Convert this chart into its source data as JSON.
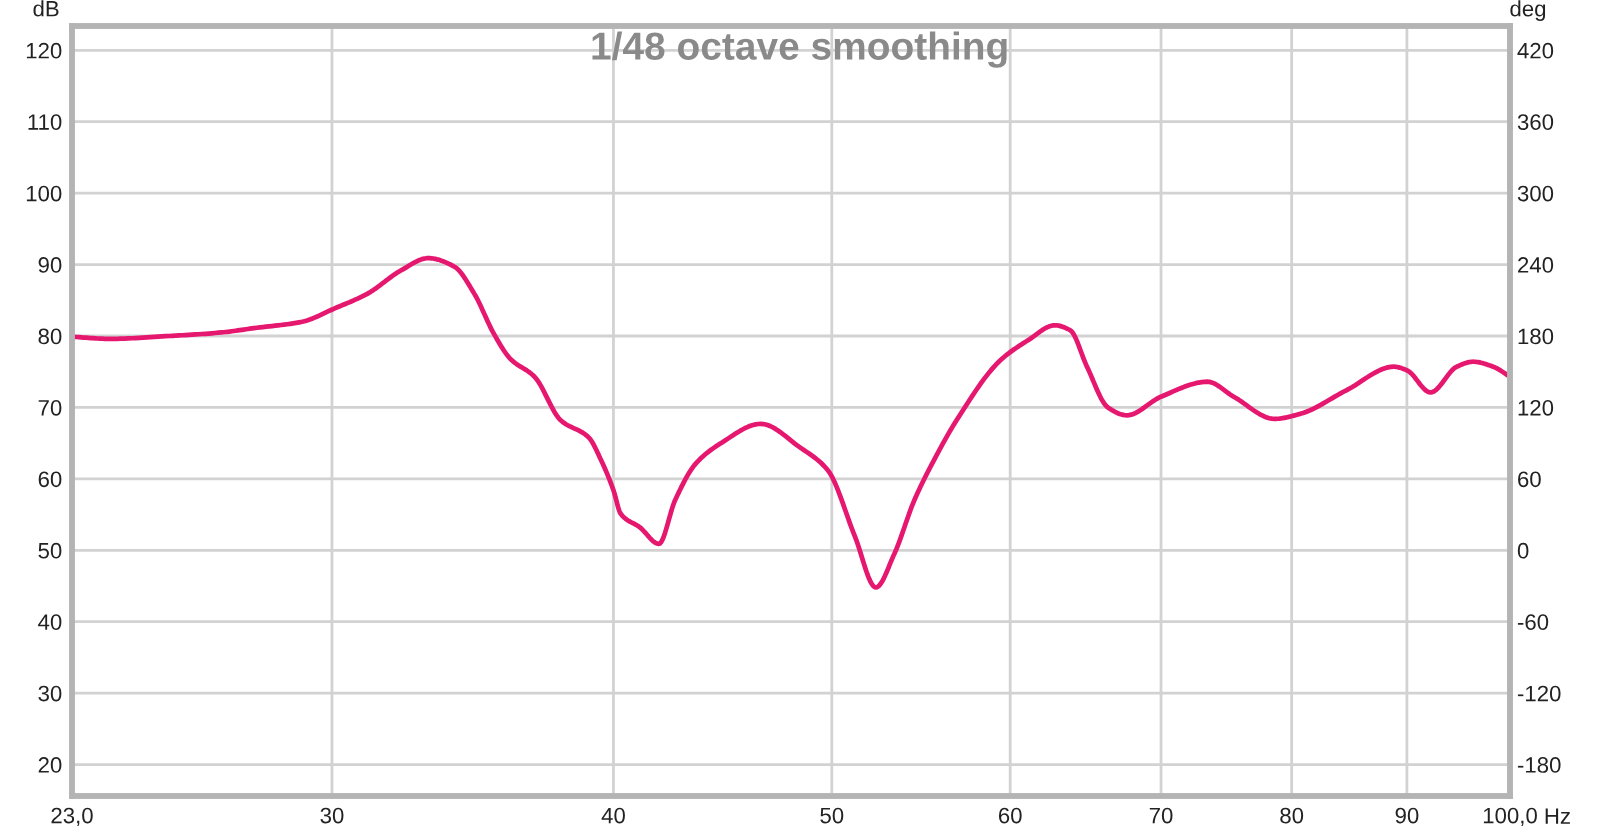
{
  "chart_data": {
    "type": "line",
    "title": "1/48 octave smoothing",
    "xlabel": "Hz",
    "ylabel": "dB",
    "y2label": "deg",
    "x": [
      23.0,
      23.9,
      25.4,
      26.8,
      27.7,
      29.1,
      30.1,
      31.1,
      32.2,
      33.1,
      34.0,
      34.7,
      35.4,
      36.0,
      36.9,
      37.9,
      39.0,
      39.5,
      40.0,
      40.3,
      41.1,
      41.9,
      42.6,
      43.5,
      44.6,
      46.5,
      48.4,
      49.8,
      51.2,
      52.3,
      53.3,
      54.4,
      55.5,
      56.8,
      59.4,
      61.1,
      62.8,
      63.8,
      64.9,
      66.3,
      67.6,
      70.0,
      73.4,
      75.4,
      78.6,
      80.7,
      84.6,
      88.8,
      90.0,
      92.2,
      94.7,
      96.3,
      98.3,
      100
    ],
    "series": [
      {
        "color": "#e5176f",
        "values": [
          79.9,
          79.6,
          80.0,
          80.5,
          81.1,
          82.0,
          83.9,
          85.9,
          89.2,
          90.9,
          89.7,
          85.9,
          80.3,
          76.8,
          74.3,
          68.2,
          65.8,
          62.6,
          58.4,
          55.1,
          53.2,
          50.9,
          57.0,
          62.1,
          64.9,
          67.7,
          64.4,
          61.2,
          51.9,
          44.8,
          49.5,
          57.0,
          62.6,
          68.2,
          76.6,
          79.4,
          81.5,
          80.8,
          75.7,
          70.0,
          68.9,
          71.5,
          73.6,
          71.5,
          68.4,
          69.1,
          72.4,
          75.7,
          75.2,
          72.1,
          75.7,
          76.4,
          75.7,
          74.3
        ]
      }
    ],
    "log": "x",
    "xlim": [
      23,
      100
    ],
    "xticks": [
      {
        "value": 23,
        "label": "23,0"
      },
      30,
      40,
      50,
      60,
      70,
      80,
      90,
      {
        "value": 100,
        "label": "100,0"
      }
    ],
    "ylim": [
      15.6,
      123.4
    ],
    "yticks": [
      20,
      30,
      40,
      50,
      60,
      70,
      80,
      90,
      100,
      110,
      120
    ],
    "y2lim": [
      -206.4,
      440.4
    ],
    "y2ticks": [
      -180,
      -120,
      -60,
      0,
      60,
      120,
      180,
      240,
      300,
      360,
      420
    ],
    "grid": true,
    "line_style": "solid"
  }
}
